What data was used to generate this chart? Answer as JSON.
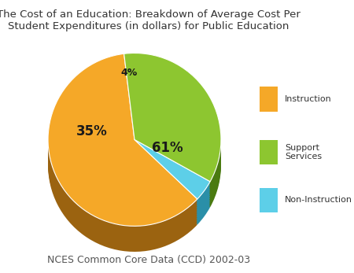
{
  "title": "The Cost of an Education: Breakdown of Average Cost Per\nStudent Expenditures (in dollars) for Public Education",
  "subtitle": "NCES Common Core Data (CCD) 2002-03",
  "slices": [
    61,
    4,
    35
  ],
  "labels": [
    "61%",
    "4%",
    "35%"
  ],
  "legend_labels": [
    "Instruction",
    "Support\nServices",
    "Non-Instruction"
  ],
  "colors": [
    "#F5A828",
    "#5DCFE8",
    "#8DC630"
  ],
  "shadow_colors": [
    "#9B6310",
    "#2A8FA8",
    "#4A7A10"
  ],
  "startangle": 97,
  "title_fontsize": 9.5,
  "subtitle_fontsize": 9,
  "label_fontsize": 12,
  "background_color": "#ffffff"
}
